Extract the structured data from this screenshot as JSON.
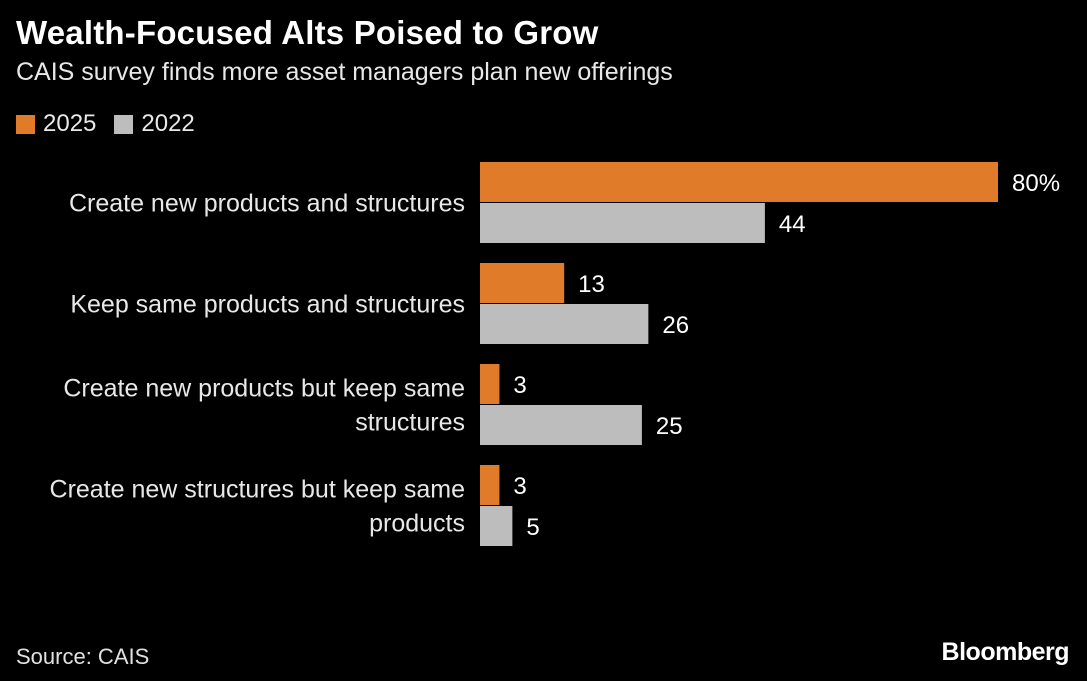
{
  "header": {
    "title": "Wealth-Focused Alts Poised to Grow",
    "subtitle": "CAIS survey finds more asset managers plan new offerings"
  },
  "legend": {
    "items": [
      {
        "label": "2025",
        "color": "#e07b2a"
      },
      {
        "label": "2022",
        "color": "#bdbdbd"
      }
    ]
  },
  "footer": {
    "source": "Source: CAIS",
    "logo": "Bloomberg"
  },
  "chart_data": {
    "type": "bar",
    "orientation": "horizontal",
    "categories": [
      [
        "Create new products and structures"
      ],
      [
        "Keep same products and structures"
      ],
      [
        "Create new products but keep same",
        "structures"
      ],
      [
        "Create new structures but keep same",
        "products"
      ]
    ],
    "series": [
      {
        "name": "2025",
        "color": "#e07b2a",
        "values": [
          80,
          13,
          3,
          3
        ],
        "labels": [
          "80%",
          "13",
          "3",
          "3"
        ]
      },
      {
        "name": "2022",
        "color": "#bdbdbd",
        "values": [
          44,
          26,
          25,
          5
        ],
        "labels": [
          "44",
          "26",
          "25",
          "5"
        ]
      }
    ],
    "xlim": [
      0,
      80
    ],
    "grid": false,
    "legend_position": "top-left",
    "title": "Wealth-Focused Alts Poised to Grow",
    "xlabel": "",
    "ylabel": ""
  }
}
